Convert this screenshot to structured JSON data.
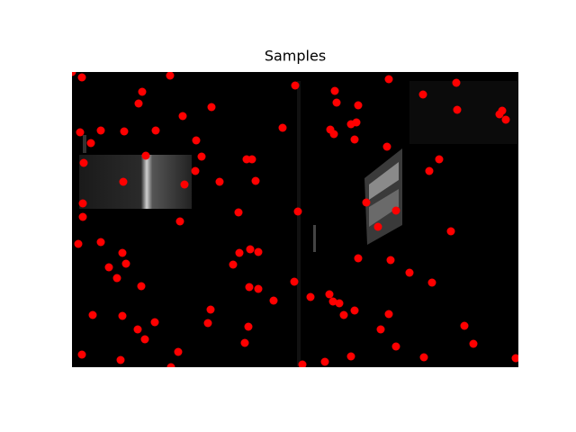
{
  "chart_data": {
    "type": "scatter",
    "title": "Samples",
    "xlim": [
      0,
      496
    ],
    "ylim": [
      328,
      0
    ],
    "series": [
      {
        "color": "#ff0000",
        "x": [
          0,
          11,
          109,
          78,
          74,
          248,
          292,
          352,
          390,
          427,
          294,
          318,
          428,
          478,
          475,
          482,
          155,
          123,
          9,
          32,
          58,
          93,
          21,
          138,
          234,
          287,
          291,
          310,
          316,
          314,
          350,
          82,
          144,
          194,
          200,
          408,
          13,
          137,
          397,
          57,
          125,
          164,
          204,
          12,
          327,
          12,
          120,
          185,
          251,
          360,
          340,
          421,
          7,
          32,
          56,
          60,
          41,
          50,
          186,
          198,
          207,
          179,
          318,
          354,
          375,
          400,
          77,
          247,
          197,
          207,
          265,
          286,
          290,
          297,
          224,
          154,
          314,
          302,
          23,
          56,
          151,
          92,
          73,
          196,
          352,
          436,
          343,
          81,
          192,
          360,
          446,
          11,
          54,
          118,
          110,
          256,
          281,
          310,
          391,
          493
        ],
        "values": [
          0,
          6,
          4,
          22,
          35,
          15,
          21,
          8,
          25,
          12,
          34,
          37,
          42,
          43,
          47,
          53,
          39,
          49,
          67,
          65,
          66,
          65,
          79,
          76,
          62,
          64,
          69,
          58,
          56,
          75,
          83,
          93,
          94,
          97,
          97,
          97,
          101,
          110,
          110,
          122,
          125,
          122,
          121,
          146,
          145,
          161,
          166,
          156,
          155,
          154,
          172,
          177,
          191,
          189,
          201,
          213,
          217,
          229,
          201,
          197,
          200,
          214,
          207,
          209,
          223,
          234,
          238,
          233,
          239,
          241,
          250,
          247,
          255,
          257,
          254,
          264,
          265,
          270,
          270,
          271,
          279,
          278,
          286,
          283,
          269,
          282,
          286,
          297,
          301,
          305,
          302,
          314,
          320,
          311,
          328,
          325,
          322,
          316,
          317,
          318
        ]
      }
    ]
  }
}
